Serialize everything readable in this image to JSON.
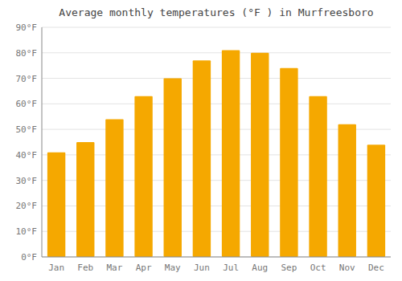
{
  "chart_data": {
    "type": "bar",
    "title": "Average monthly temperatures (°F ) in Murfreesboro",
    "categories": [
      "Jan",
      "Feb",
      "Mar",
      "Apr",
      "May",
      "Jun",
      "Jul",
      "Aug",
      "Sep",
      "Oct",
      "Nov",
      "Dec"
    ],
    "values": [
      41,
      45,
      54,
      63,
      70,
      77,
      81,
      80,
      74,
      63,
      52,
      44
    ],
    "color": "#F5A800",
    "ylim": [
      0,
      90
    ],
    "yticks": [
      {
        "value": 0,
        "label": "0°F"
      },
      {
        "value": 10,
        "label": "10°F"
      },
      {
        "value": 20,
        "label": "20°F"
      },
      {
        "value": 30,
        "label": "30°F"
      },
      {
        "value": 40,
        "label": "40°F"
      },
      {
        "value": 50,
        "label": "50°F"
      },
      {
        "value": 60,
        "label": "60°F"
      },
      {
        "value": 70,
        "label": "70°F"
      },
      {
        "value": 80,
        "label": "80°F"
      },
      {
        "value": 90,
        "label": "90°F"
      }
    ],
    "grid": true
  }
}
